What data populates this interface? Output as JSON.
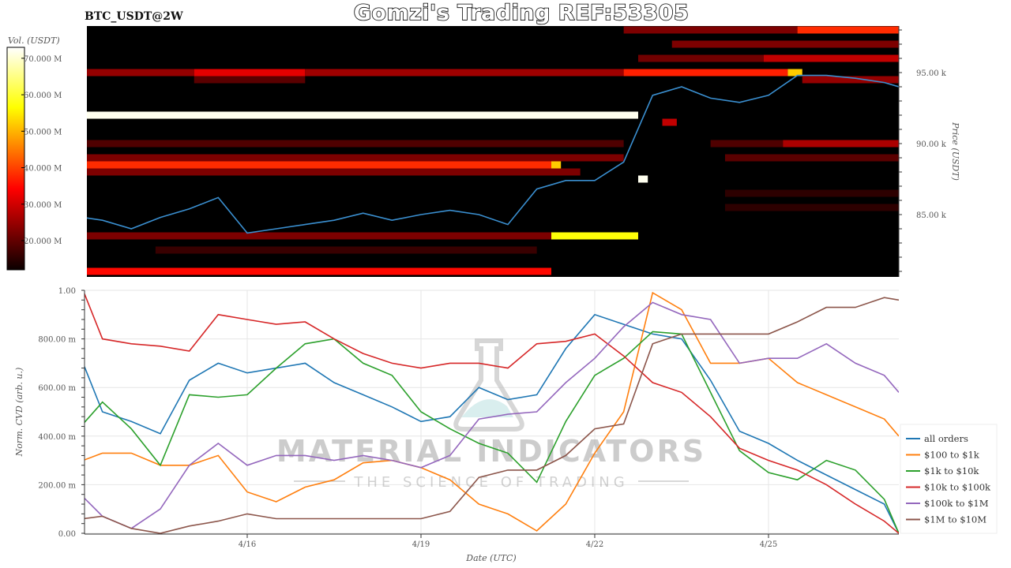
{
  "header": {
    "title": "Gomzi's Trading REF:53305",
    "pair_label": "BTC_USDT@2W"
  },
  "watermark": {
    "line1": "MATERIAL INDICATORS",
    "line2": "THE SCIENCE OF TRADING"
  },
  "colors": {
    "all orders": "#1f77b4",
    "$100 to $1k": "#ff7f0e",
    "$1k to $10k": "#2ca02c",
    "$10k to $100k": "#d62728",
    "$100k to $1M": "#9467bd",
    "$1M to $10M": "#8c564b",
    "price": "#3a8fd0"
  },
  "chart_data": [
    {
      "type": "heatmap",
      "title": "",
      "ylabel": "Price (USDT)",
      "colorbar_label": "Vol. (USDT)",
      "colormap": "hot",
      "colorbar_ticks": [
        "20.000 M",
        "30.000 M",
        "40.000 M",
        "50.000 M",
        "60.000 M",
        "70.000 M"
      ],
      "colorbar_tick_values": [
        20,
        30,
        40,
        50,
        60,
        70
      ],
      "colorbar_range": [
        12,
        73
      ],
      "y_ticks": [
        "85.00 k",
        "90.00 k",
        "95.00 k"
      ],
      "y_tick_values": [
        85,
        90,
        95
      ],
      "ylim": [
        80.7,
        98.3
      ],
      "xlim": [
        "04-13 04:00",
        "04-27 06:00"
      ],
      "bands": [
        {
          "price": 98.0,
          "from": "04-22 12:00",
          "to": "04-25 12:00",
          "vol": 22
        },
        {
          "price": 98.0,
          "from": "04-25 12:00",
          "to": "04-27 06:00",
          "vol": 38
        },
        {
          "price": 97.0,
          "from": "04-23 08:00",
          "to": "04-27 06:00",
          "vol": 22
        },
        {
          "price": 96.0,
          "from": "04-22 18:00",
          "to": "04-24 22:00",
          "vol": 21
        },
        {
          "price": 96.0,
          "from": "04-24 22:00",
          "to": "04-27 06:00",
          "vol": 28
        },
        {
          "price": 95.0,
          "from": "04-13 04:00",
          "to": "04-15 02:00",
          "vol": 24
        },
        {
          "price": 95.0,
          "from": "04-15 02:00",
          "to": "04-17 00:00",
          "vol": 31
        },
        {
          "price": 95.0,
          "from": "04-17 00:00",
          "to": "04-22 12:00",
          "vol": 25
        },
        {
          "price": 95.0,
          "from": "04-22 12:00",
          "to": "04-25 08:00",
          "vol": 37
        },
        {
          "price": 95.0,
          "from": "04-25 08:00",
          "to": "04-25 14:00",
          "vol": 52
        },
        {
          "price": 94.5,
          "from": "04-15 02:00",
          "to": "04-17 00:00",
          "vol": 19
        },
        {
          "price": 94.5,
          "from": "04-25 14:00",
          "to": "04-27 06:00",
          "vol": 24
        },
        {
          "price": 92.0,
          "from": "04-13 04:00",
          "to": "04-22 18:00",
          "vol": 72
        },
        {
          "price": 91.5,
          "from": "04-23 04:00",
          "to": "04-23 10:00",
          "vol": 28
        },
        {
          "price": 90.0,
          "from": "04-13 04:00",
          "to": "04-22 12:00",
          "vol": 18
        },
        {
          "price": 90.0,
          "from": "04-24 00:00",
          "to": "04-25 06:00",
          "vol": 18
        },
        {
          "price": 90.0,
          "from": "04-25 06:00",
          "to": "04-27 06:00",
          "vol": 26
        },
        {
          "price": 89.0,
          "from": "04-13 04:00",
          "to": "04-22 12:00",
          "vol": 22
        },
        {
          "price": 89.0,
          "from": "04-24 06:00",
          "to": "04-27 06:00",
          "vol": 19
        },
        {
          "price": 88.5,
          "from": "04-13 04:00",
          "to": "04-21 06:00",
          "vol": 38
        },
        {
          "price": 88.5,
          "from": "04-21 06:00",
          "to": "04-21 10:00",
          "vol": 52
        },
        {
          "price": 88.0,
          "from": "04-13 04:00",
          "to": "04-21 18:00",
          "vol": 22
        },
        {
          "price": 87.5,
          "from": "04-22 18:00",
          "to": "04-22 22:00",
          "vol": 72
        },
        {
          "price": 86.5,
          "from": "04-24 06:00",
          "to": "04-27 06:00",
          "vol": 15
        },
        {
          "price": 85.5,
          "from": "04-24 06:00",
          "to": "04-27 06:00",
          "vol": 15
        },
        {
          "price": 83.5,
          "from": "04-13 04:00",
          "to": "04-21 06:00",
          "vol": 22
        },
        {
          "price": 83.5,
          "from": "04-21 06:00",
          "to": "04-22 18:00",
          "vol": 58
        },
        {
          "price": 82.5,
          "from": "04-14 10:00",
          "to": "04-21 00:00",
          "vol": 16
        },
        {
          "price": 81.0,
          "from": "04-13 04:00",
          "to": "04-21 06:00",
          "vol": 35
        }
      ],
      "price_line": {
        "x": [
          "04-13 04:00",
          "04-13 12:00",
          "04-14 00:00",
          "04-14 12:00",
          "04-15 00:00",
          "04-15 12:00",
          "04-16 00:00",
          "04-16 12:00",
          "04-17 00:00",
          "04-17 12:00",
          "04-18 00:00",
          "04-18 12:00",
          "04-19 00:00",
          "04-19 12:00",
          "04-20 00:00",
          "04-20 12:00",
          "04-21 00:00",
          "04-21 12:00",
          "04-22 00:00",
          "04-22 12:00",
          "04-23 00:00",
          "04-23 12:00",
          "04-24 00:00",
          "04-24 12:00",
          "04-25 00:00",
          "04-25 12:00",
          "04-26 00:00",
          "04-26 12:00",
          "04-27 00:00",
          "04-27 06:00"
        ],
        "y": [
          84.8,
          84.6,
          84.0,
          84.8,
          85.4,
          86.2,
          83.7,
          84.0,
          84.3,
          84.6,
          85.1,
          84.6,
          85.0,
          85.3,
          85.0,
          84.3,
          86.8,
          87.4,
          87.4,
          88.7,
          93.4,
          94.0,
          93.2,
          92.9,
          93.4,
          94.8,
          94.8,
          94.6,
          94.3,
          94.0
        ]
      }
    },
    {
      "type": "line",
      "title": "",
      "xlabel": "Date (UTC)",
      "ylabel": "Norm. CVD (arb. u.)",
      "ylim": [
        0,
        1
      ],
      "xlim": [
        "04-13 04:00",
        "04-27 06:00"
      ],
      "x_ticks": [
        "4/16",
        "4/19",
        "4/22",
        "4/25"
      ],
      "x_tick_values": [
        "04-16 00:00",
        "04-19 00:00",
        "04-22 00:00",
        "04-25 00:00"
      ],
      "y_ticks": [
        "0.00",
        "200.00 m",
        "400.00 m",
        "600.00 m",
        "800.00 m",
        "1.00"
      ],
      "y_tick_values": [
        0,
        0.2,
        0.4,
        0.6,
        0.8,
        1.0
      ],
      "grid": true,
      "legend": "right",
      "x": [
        "04-13 04:00",
        "04-13 12:00",
        "04-14 00:00",
        "04-14 12:00",
        "04-15 00:00",
        "04-15 12:00",
        "04-16 00:00",
        "04-16 12:00",
        "04-17 00:00",
        "04-17 12:00",
        "04-18 00:00",
        "04-18 12:00",
        "04-19 00:00",
        "04-19 12:00",
        "04-20 00:00",
        "04-20 12:00",
        "04-21 00:00",
        "04-21 12:00",
        "04-22 00:00",
        "04-22 12:00",
        "04-23 00:00",
        "04-23 12:00",
        "04-24 00:00",
        "04-24 12:00",
        "04-25 00:00",
        "04-25 12:00",
        "04-26 00:00",
        "04-26 12:00",
        "04-27 00:00",
        "04-27 06:00"
      ],
      "series": [
        {
          "name": "all orders",
          "values": [
            0.7,
            0.5,
            0.46,
            0.41,
            0.63,
            0.7,
            0.66,
            0.68,
            0.7,
            0.62,
            0.57,
            0.52,
            0.46,
            0.48,
            0.6,
            0.55,
            0.57,
            0.76,
            0.9,
            0.86,
            0.82,
            0.8,
            0.63,
            0.42,
            0.37,
            0.3,
            0.24,
            0.18,
            0.12,
            0.0
          ]
        },
        {
          "name": "$100 to $1k",
          "values": [
            0.3,
            0.33,
            0.33,
            0.28,
            0.28,
            0.32,
            0.17,
            0.13,
            0.19,
            0.22,
            0.29,
            0.3,
            0.27,
            0.22,
            0.12,
            0.08,
            0.01,
            0.12,
            0.33,
            0.5,
            0.99,
            0.92,
            0.7,
            0.7,
            0.72,
            0.62,
            0.57,
            0.52,
            0.47,
            0.4
          ]
        },
        {
          "name": "$1k to $10k",
          "values": [
            0.45,
            0.54,
            0.43,
            0.28,
            0.57,
            0.56,
            0.57,
            0.68,
            0.78,
            0.8,
            0.7,
            0.65,
            0.5,
            0.43,
            0.37,
            0.33,
            0.21,
            0.46,
            0.65,
            0.72,
            0.83,
            0.82,
            0.58,
            0.34,
            0.25,
            0.22,
            0.3,
            0.26,
            0.14,
            0.0
          ]
        },
        {
          "name": "$10k to $100k",
          "values": [
            1.0,
            0.8,
            0.78,
            0.77,
            0.75,
            0.9,
            0.88,
            0.86,
            0.87,
            0.8,
            0.74,
            0.7,
            0.68,
            0.7,
            0.7,
            0.68,
            0.78,
            0.79,
            0.82,
            0.73,
            0.62,
            0.58,
            0.48,
            0.35,
            0.3,
            0.26,
            0.2,
            0.12,
            0.05,
            0.0
          ]
        },
        {
          "name": "$100k to $1M",
          "values": [
            0.15,
            0.07,
            0.02,
            0.1,
            0.28,
            0.37,
            0.28,
            0.32,
            0.32,
            0.3,
            0.32,
            0.3,
            0.27,
            0.32,
            0.47,
            0.49,
            0.5,
            0.62,
            0.72,
            0.85,
            0.95,
            0.9,
            0.88,
            0.7,
            0.72,
            0.72,
            0.78,
            0.7,
            0.65,
            0.58
          ]
        },
        {
          "name": "$1M to $10M",
          "values": [
            0.06,
            0.07,
            0.02,
            0.0,
            0.03,
            0.05,
            0.08,
            0.06,
            0.06,
            0.06,
            0.06,
            0.06,
            0.06,
            0.09,
            0.23,
            0.26,
            0.26,
            0.32,
            0.43,
            0.45,
            0.78,
            0.82,
            0.82,
            0.82,
            0.82,
            0.87,
            0.93,
            0.93,
            0.97,
            0.96
          ]
        }
      ]
    }
  ]
}
